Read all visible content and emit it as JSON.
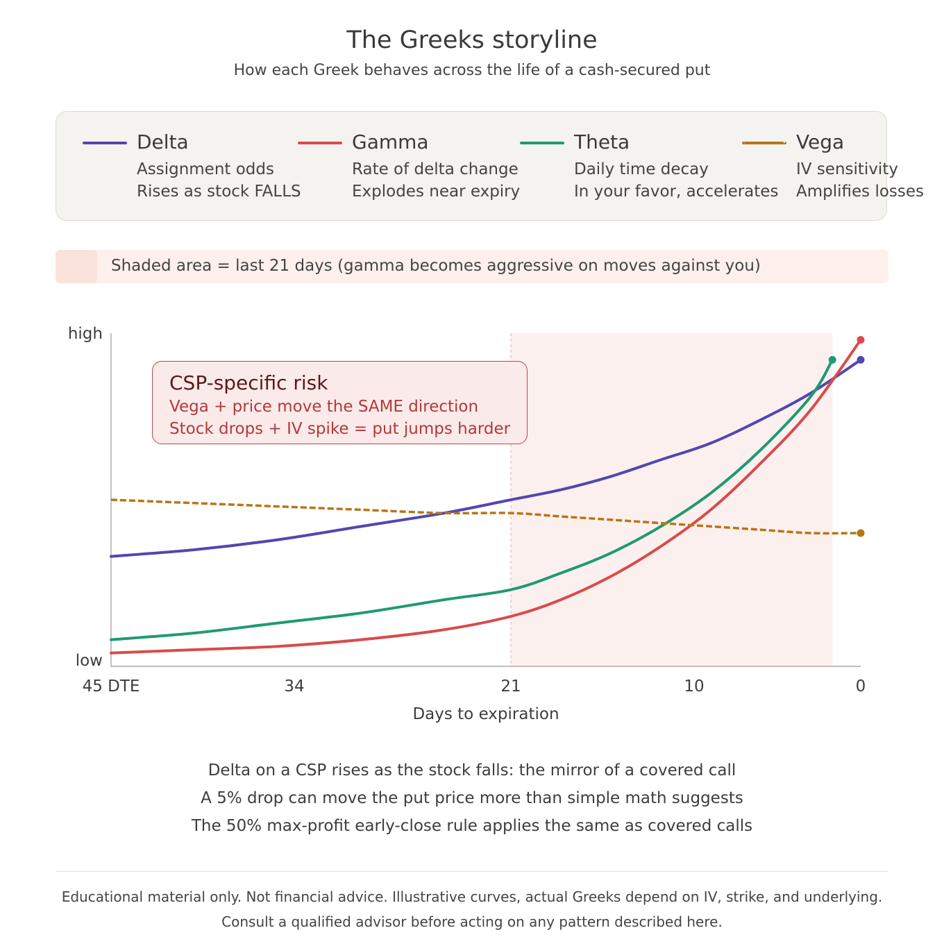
{
  "title": "The Greeks storyline",
  "subtitle": "How each Greek behaves across the life of a cash-secured put",
  "legend": [
    {
      "name": "Delta",
      "desc1": "Assignment odds",
      "desc2": "Rises as stock FALLS",
      "color": "#5346b0",
      "dashed": false
    },
    {
      "name": "Gamma",
      "desc1": "Rate of delta change",
      "desc2": "Explodes near expiry",
      "color": "#d94b4b",
      "dashed": false
    },
    {
      "name": "Theta",
      "desc1": "Daily time decay",
      "desc2": "In your favor, accelerates",
      "color": "#1f9a72",
      "dashed": false
    },
    {
      "name": "Vega",
      "desc1": "IV sensitivity",
      "desc2": "Amplifies losses",
      "color": "#b87516",
      "dashed": true
    }
  ],
  "shade_note": "Shaded area = last 21 days (gamma becomes aggressive on moves against you)",
  "callout": {
    "title": "CSP-specific risk",
    "line1": "Vega + price move the SAME direction",
    "line2": "Stock drops + IV spike = put jumps harder"
  },
  "chart_data": {
    "type": "line",
    "xlabel": "Days to expiration",
    "ylabel": "",
    "x_tick_labels": [
      "45 DTE",
      "34",
      "21",
      "10",
      "0"
    ],
    "x_ticks": [
      45,
      34,
      21,
      10,
      0
    ],
    "xlim": [
      45,
      0
    ],
    "y_tick_labels": [
      "high",
      "low"
    ],
    "ylim": [
      0,
      1
    ],
    "shaded_region": {
      "x_from": 21,
      "x_to": 1.7
    },
    "series": [
      {
        "name": "Delta",
        "color": "#5346b0",
        "style": "solid",
        "x": [
          45,
          40,
          35,
          30,
          25,
          21,
          18,
          15,
          12,
          9,
          6,
          3,
          0
        ],
        "y": [
          0.33,
          0.35,
          0.38,
          0.42,
          0.46,
          0.5,
          0.53,
          0.57,
          0.62,
          0.67,
          0.74,
          0.82,
          0.92
        ]
      },
      {
        "name": "Gamma",
        "color": "#d94b4b",
        "style": "solid",
        "x": [
          45,
          40,
          35,
          30,
          25,
          21,
          18,
          15,
          12,
          9,
          6,
          3,
          0
        ],
        "y": [
          0.04,
          0.05,
          0.06,
          0.08,
          0.11,
          0.15,
          0.2,
          0.27,
          0.36,
          0.47,
          0.61,
          0.77,
          0.98
        ]
      },
      {
        "name": "Theta",
        "color": "#1f9a72",
        "style": "solid",
        "x": [
          45,
          40,
          35,
          30,
          25,
          21,
          18,
          15,
          12,
          9,
          6,
          3,
          1.7
        ],
        "y": [
          0.08,
          0.1,
          0.13,
          0.16,
          0.2,
          0.23,
          0.28,
          0.34,
          0.42,
          0.52,
          0.65,
          0.81,
          0.92
        ]
      },
      {
        "name": "Vega",
        "color": "#b87516",
        "style": "dashed",
        "x": [
          45,
          40,
          35,
          30,
          25,
          21,
          18,
          15,
          12,
          9,
          6,
          3,
          0
        ],
        "y": [
          0.5,
          0.49,
          0.48,
          0.47,
          0.46,
          0.46,
          0.45,
          0.44,
          0.43,
          0.42,
          0.41,
          0.4,
          0.4
        ]
      }
    ]
  },
  "notes": [
    "Delta on a CSP rises as the stock falls: the mirror of a covered call",
    "A 5% drop can move the put price more than simple math suggests",
    "The 50% max-profit early-close rule applies the same as covered calls"
  ],
  "disclaimer": [
    "Educational material only. Not financial advice. Illustrative curves, actual Greeks depend on IV, strike, and underlying.",
    "Consult a qualified advisor before acting on any pattern described here."
  ]
}
